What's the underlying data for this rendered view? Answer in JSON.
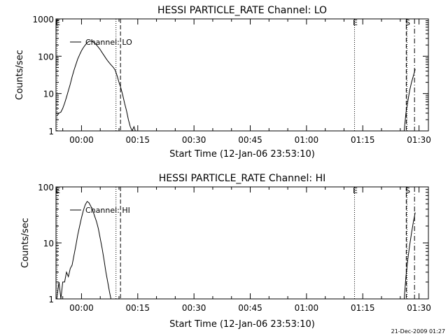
{
  "chart_data": [
    {
      "type": "line",
      "title": "HESSI PARTICLE_RATE Channel: LO",
      "xlabel": "Start Time (12-Jan-06 23:53:10)",
      "ylabel": "Counts/sec",
      "yscale": "log",
      "ylim": [
        1,
        1000
      ],
      "y_tick_labels": [
        "1",
        "10",
        "100",
        "1000"
      ],
      "x_tick_labels": [
        "00:00",
        "00:15",
        "00:30",
        "00:45",
        "01:00",
        "01:15",
        "01:30"
      ],
      "x_ticks_min": [
        0,
        15,
        30,
        45,
        60,
        75,
        90
      ],
      "xlim_min": [
        -6.8,
        92.5
      ],
      "legend": "Channel: LO",
      "legend_position": "top-left",
      "markers": [
        {
          "label": "E",
          "x_min": -6.5,
          "style": "dotted"
        },
        {
          "label": "",
          "x_min": 9.2,
          "style": "dotted"
        },
        {
          "label": "",
          "x_min": 10.4,
          "style": "dashed"
        },
        {
          "label": "E",
          "x_min": 72.8,
          "style": "dotted"
        },
        {
          "label": "",
          "x_min": 86.6,
          "style": "dashed"
        },
        {
          "label": "S",
          "x_min": 86.8,
          "style": "dotted"
        },
        {
          "label": "",
          "x_min": 88.8,
          "style": "dash-dot"
        }
      ],
      "segments": [
        {
          "x_min": [
            -6.6,
            -6.0,
            -5.5,
            -5.0,
            -4.5,
            -4.0,
            -3.5,
            -3.0,
            -2.5,
            -2.0,
            -1.5,
            -1.0,
            -0.5,
            0.0,
            0.5,
            1.0,
            1.5,
            2.0,
            2.5,
            3.0,
            3.5,
            4.0,
            4.5,
            5.0,
            5.5,
            6.0,
            6.5,
            7.0,
            7.5,
            8.0,
            8.5,
            9.0,
            9.5,
            10.0,
            10.5,
            11.0,
            11.5,
            12.0,
            12.5,
            13.0,
            13.5,
            14.0,
            14.5
          ],
          "y": [
            2.5,
            3.0,
            3.2,
            4.0,
            5.5,
            8.0,
            12.0,
            18.0,
            28.0,
            42.0,
            60.0,
            85.0,
            110.0,
            140.0,
            170.0,
            200.0,
            230.0,
            250.0,
            255.0,
            245.0,
            225.0,
            200.0,
            175.0,
            150.0,
            125.0,
            105.0,
            88.0,
            75.0,
            65.0,
            57.0,
            50.0,
            42.0,
            30.0,
            20.0,
            14.0,
            9.0,
            5.5,
            3.5,
            2.0,
            1.3,
            1.0,
            1.3,
            0.9
          ]
        },
        {
          "x_min": [
            86.0,
            86.5,
            87.0,
            87.5,
            88.0,
            88.5,
            89.0
          ],
          "y": [
            0.9,
            3.0,
            6.0,
            12.0,
            20.0,
            30.0,
            45.0
          ]
        }
      ]
    },
    {
      "type": "line",
      "title": "HESSI PARTICLE_RATE Channel: HI",
      "xlabel": "Start Time (12-Jan-06 23:53:10)",
      "ylabel": "Counts/sec",
      "yscale": "log",
      "ylim": [
        1,
        100
      ],
      "y_tick_labels": [
        "1",
        "10",
        "100"
      ],
      "x_tick_labels": [
        "00:00",
        "00:15",
        "00:30",
        "00:45",
        "01:00",
        "01:15",
        "01:30"
      ],
      "x_ticks_min": [
        0,
        15,
        30,
        45,
        60,
        75,
        90
      ],
      "xlim_min": [
        -6.8,
        92.5
      ],
      "legend": "Channel: HI",
      "legend_position": "top-left",
      "markers": [
        {
          "label": "E",
          "x_min": -6.5,
          "style": "dotted"
        },
        {
          "label": "",
          "x_min": 9.2,
          "style": "dotted"
        },
        {
          "label": "",
          "x_min": 10.4,
          "style": "dashed"
        },
        {
          "label": "E",
          "x_min": 72.8,
          "style": "dotted"
        },
        {
          "label": "",
          "x_min": 86.6,
          "style": "dashed"
        },
        {
          "label": "S",
          "x_min": 86.8,
          "style": "dotted"
        },
        {
          "label": "",
          "x_min": 88.8,
          "style": "dash-dot"
        }
      ],
      "segments": [
        {
          "x_min": [
            -6.6,
            -6.0,
            -5.5,
            -5.0,
            -4.5,
            -4.0,
            -3.5,
            -3.0,
            -2.5,
            -2.0,
            -1.5,
            -1.0,
            -0.5,
            0.0,
            0.5,
            1.0,
            1.5,
            2.0,
            2.5,
            3.0,
            3.5,
            4.0,
            4.5,
            5.0,
            5.5,
            6.0,
            6.5,
            7.0,
            7.5,
            8.0
          ],
          "y": [
            1.0,
            2.0,
            1.0,
            2.0,
            2.0,
            3.0,
            2.5,
            3.5,
            4.0,
            6.0,
            9.0,
            14.0,
            20.0,
            28.0,
            38.0,
            48.0,
            55.0,
            52.0,
            45.0,
            38.0,
            30.0,
            24.0,
            18.0,
            12.0,
            8.0,
            5.0,
            3.0,
            2.0,
            1.3,
            0.9
          ]
        },
        {
          "x_min": [
            86.0,
            86.5,
            87.0,
            87.5,
            88.0,
            88.5,
            89.0
          ],
          "y": [
            0.9,
            2.5,
            5.0,
            9.0,
            15.0,
            24.0,
            35.0
          ]
        }
      ]
    }
  ],
  "timestamp": "21-Dec-2009 01:27"
}
